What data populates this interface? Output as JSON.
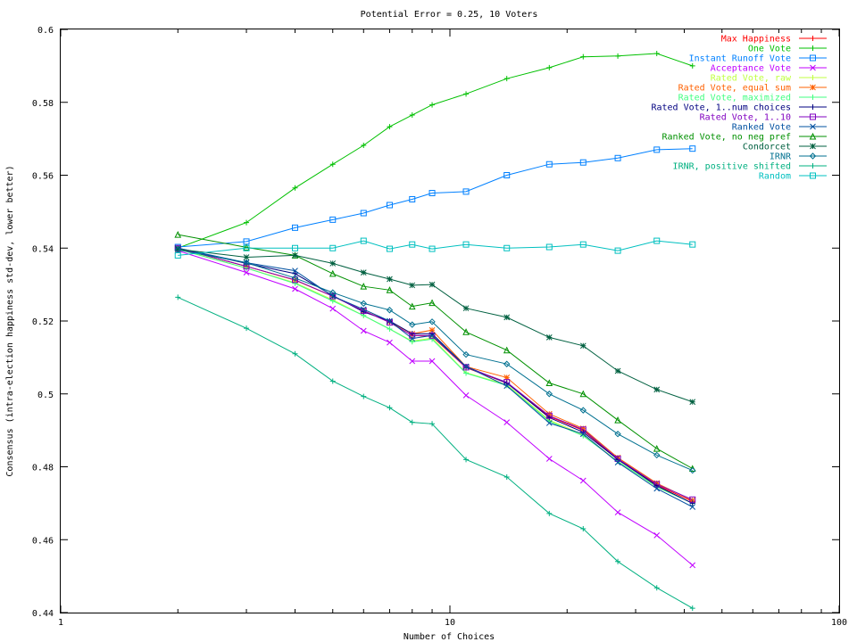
{
  "chart_data": {
    "type": "line",
    "title": "Potential Error = 0.25, 10 Voters",
    "xlabel": "Number of Choices",
    "ylabel": "Consensus (intra-election happiness std-dev, lower better)",
    "xscale": "log",
    "xlim": [
      1,
      100
    ],
    "ylim": [
      0.44,
      0.6
    ],
    "x_ticks": [
      1,
      10,
      100
    ],
    "x_tick_labels": [
      "1",
      "10",
      "100"
    ],
    "y_ticks": [
      0.44,
      0.46,
      0.48,
      0.5,
      0.52,
      0.54,
      0.56,
      0.58,
      0.6
    ],
    "y_tick_labels": [
      "0.44",
      "0.46",
      "0.48",
      "0.5",
      "0.52",
      "0.54",
      "0.56",
      "0.58",
      "0.6"
    ],
    "grid": false,
    "legend_position": "top-right",
    "x": [
      2,
      3,
      4,
      5,
      6,
      7,
      8,
      9,
      11,
      14,
      18,
      22,
      27,
      34,
      42
    ],
    "series": [
      {
        "name": "Max Happiness",
        "color": "#ff0000",
        "marker": "plus",
        "values": [
          0.54,
          0.535,
          0.5312,
          0.5268,
          0.5228,
          0.5196,
          0.516,
          0.5158,
          0.5072,
          0.503,
          0.4938,
          0.49,
          0.482,
          0.475,
          0.4705
        ]
      },
      {
        "name": "One Vote",
        "color": "#00c000",
        "marker": "plus",
        "values": [
          0.54,
          0.547,
          0.5565,
          0.563,
          0.5682,
          0.5733,
          0.5765,
          0.5793,
          0.5823,
          0.5865,
          0.5895,
          0.5925,
          0.5927,
          0.5934,
          0.59
        ]
      },
      {
        "name": "Instant Runoff Vote",
        "color": "#0080ff",
        "marker": "square",
        "values": [
          0.5403,
          0.5418,
          0.5456,
          0.5478,
          0.5496,
          0.5518,
          0.5534,
          0.5551,
          0.5555,
          0.56,
          0.563,
          0.5635,
          0.5647,
          0.567,
          0.5673
        ]
      },
      {
        "name": "Acceptance Vote",
        "color": "#c000ff",
        "marker": "cross",
        "values": [
          0.5393,
          0.5333,
          0.5288,
          0.5234,
          0.5173,
          0.5141,
          0.509,
          0.509,
          0.4996,
          0.4922,
          0.4822,
          0.4762,
          0.4675,
          0.4612,
          0.453
        ]
      },
      {
        "name": "Rated Vote, raw",
        "color": "#c0ff40",
        "marker": "plus",
        "values": [
          0.5398,
          0.5345,
          0.5305,
          0.5258,
          0.5215,
          0.5178,
          0.5145,
          0.5153,
          0.5058,
          0.5025,
          0.4928,
          0.4888,
          0.4815,
          0.4745,
          0.47
        ]
      },
      {
        "name": "Rated Vote, equal sum",
        "color": "#ff6000",
        "marker": "star",
        "values": [
          0.54,
          0.535,
          0.5312,
          0.5268,
          0.5228,
          0.5198,
          0.5165,
          0.5175,
          0.5075,
          0.5045,
          0.4945,
          0.4905,
          0.4825,
          0.4755,
          0.4708
        ]
      },
      {
        "name": "Rated Vote, maximized",
        "color": "#40ff80",
        "marker": "plus",
        "values": [
          0.5397,
          0.5345,
          0.5303,
          0.5255,
          0.5215,
          0.5178,
          0.5143,
          0.515,
          0.5057,
          0.5023,
          0.4925,
          0.4885,
          0.4815,
          0.4745,
          0.47
        ]
      },
      {
        "name": "Rated Vote, 1..num choices",
        "color": "#000080",
        "marker": "plus",
        "values": [
          0.54,
          0.5358,
          0.533,
          0.527,
          0.5225,
          0.52,
          0.5165,
          0.5165,
          0.5075,
          0.503,
          0.4935,
          0.4895,
          0.482,
          0.4748,
          0.47
        ]
      },
      {
        "name": "Rated Vote, 1..10",
        "color": "#8000c0",
        "marker": "square",
        "values": [
          0.54,
          0.535,
          0.5313,
          0.5268,
          0.5228,
          0.5196,
          0.516,
          0.516,
          0.5073,
          0.5032,
          0.494,
          0.4902,
          0.4822,
          0.4752,
          0.471
        ]
      },
      {
        "name": "Ranked Vote",
        "color": "#0050a0",
        "marker": "cross",
        "values": [
          0.54,
          0.536,
          0.5338,
          0.5268,
          0.5232,
          0.52,
          0.5152,
          0.516,
          0.5075,
          0.5022,
          0.492,
          0.489,
          0.4812,
          0.474,
          0.469
        ]
      },
      {
        "name": "Ranked Vote, no neg pref",
        "color": "#009000",
        "marker": "triangle",
        "values": [
          0.5437,
          0.5402,
          0.538,
          0.533,
          0.5295,
          0.5285,
          0.524,
          0.525,
          0.517,
          0.512,
          0.503,
          0.5,
          0.4928,
          0.485,
          0.4795
        ]
      },
      {
        "name": "Condorcet",
        "color": "#006040",
        "marker": "star",
        "values": [
          0.5397,
          0.5375,
          0.538,
          0.5358,
          0.5333,
          0.5315,
          0.5298,
          0.53,
          0.5235,
          0.521,
          0.5155,
          0.5132,
          0.5063,
          0.5012,
          0.4978
        ]
      },
      {
        "name": "IRNR",
        "color": "#007090",
        "marker": "diamond",
        "values": [
          0.5395,
          0.536,
          0.5318,
          0.5278,
          0.5248,
          0.523,
          0.519,
          0.5198,
          0.5108,
          0.5082,
          0.5,
          0.4955,
          0.489,
          0.4832,
          0.479
        ]
      },
      {
        "name": "IRNR, positive shifted",
        "color": "#00b080",
        "marker": "plus",
        "values": [
          0.5265,
          0.518,
          0.511,
          0.5035,
          0.4993,
          0.4962,
          0.4922,
          0.4918,
          0.482,
          0.4772,
          0.4672,
          0.463,
          0.454,
          0.4468,
          0.4412
        ]
      },
      {
        "name": "Random",
        "color": "#00c0c0",
        "marker": "square",
        "values": [
          0.538,
          0.54,
          0.54,
          0.54,
          0.542,
          0.5398,
          0.541,
          0.5398,
          0.541,
          0.54,
          0.5403,
          0.541,
          0.5393,
          0.542,
          0.541
        ]
      }
    ]
  }
}
